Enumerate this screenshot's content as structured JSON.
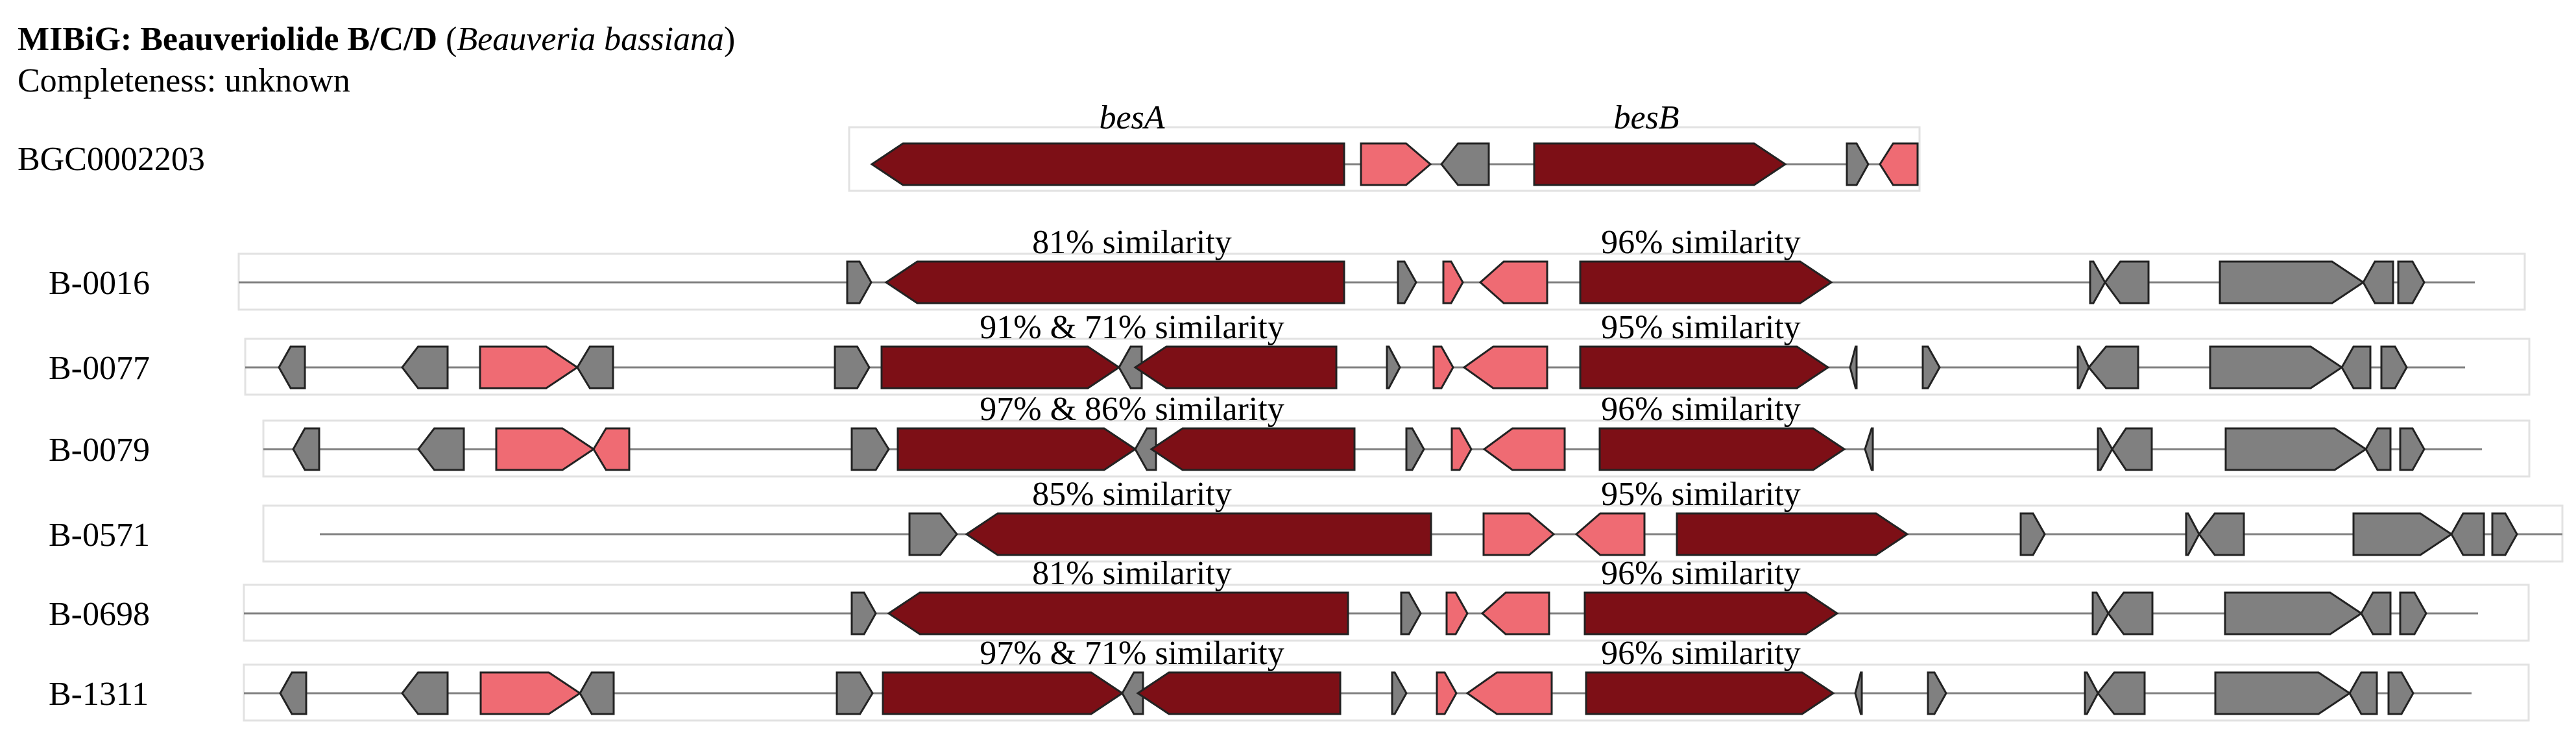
{
  "title": {
    "prefix": "MIBiG: Beauveriolide B/C/D",
    "open_paren": "(",
    "organism": "Beauveria bassiana",
    "close_paren": ")"
  },
  "completeness": "Completeness: unknown",
  "colors": {
    "core": "#7d0f16",
    "related": "#ef6b73",
    "other": "#808080",
    "backbone": "#808080",
    "stroke": "#222222",
    "box_border": "#e2e2e2"
  },
  "reference": {
    "id": "BGC0002203",
    "gene_labels": [
      "besA",
      "besB"
    ]
  },
  "strains": [
    {
      "name": "B-0016",
      "similarity": [
        "81% similarity",
        "96% similarity"
      ]
    },
    {
      "name": "B-0077",
      "similarity": [
        "91% & 71% similarity",
        "95% similarity"
      ]
    },
    {
      "name": "B-0079",
      "similarity": [
        "97% & 86% similarity",
        "96% similarity"
      ]
    },
    {
      "name": "B-0571",
      "similarity": [
        "85% similarity",
        "95% similarity"
      ]
    },
    {
      "name": "B-0698",
      "similarity": [
        "81% similarity",
        "96% similarity"
      ]
    },
    {
      "name": "B-1311",
      "similarity": [
        "97% & 71% similarity",
        "96% similarity"
      ]
    }
  ]
}
